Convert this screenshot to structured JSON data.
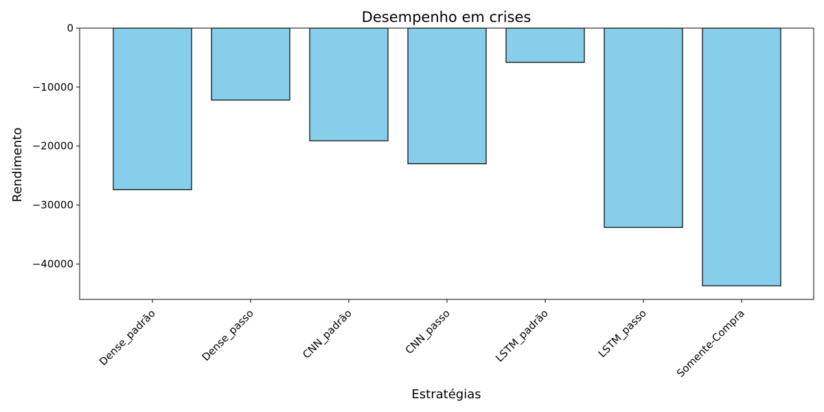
{
  "chart_data": {
    "type": "bar",
    "title": "Desempenho em crises",
    "xlabel": "Estratégias",
    "ylabel": "Rendimento",
    "categories": [
      "Dense_padrão",
      "Dense_passo",
      "CNN_padrão",
      "CNN_passo",
      "LSTM_padrão",
      "LSTM_passo",
      "Somente-Compra"
    ],
    "values": [
      -27400,
      -12200,
      -19100,
      -23000,
      -5800,
      -33800,
      -43700
    ],
    "ylim": [
      -46000,
      0
    ],
    "yticks": [
      0,
      -10000,
      -20000,
      -30000,
      -40000
    ],
    "ytick_labels": [
      "0",
      "−10000",
      "−20000",
      "−30000",
      "−40000"
    ],
    "grid": false,
    "legend": "none",
    "colors": {
      "bar_fill": "#87CEEB",
      "bar_edge": "#000000",
      "axis": "#000000",
      "background": "#ffffff"
    }
  }
}
